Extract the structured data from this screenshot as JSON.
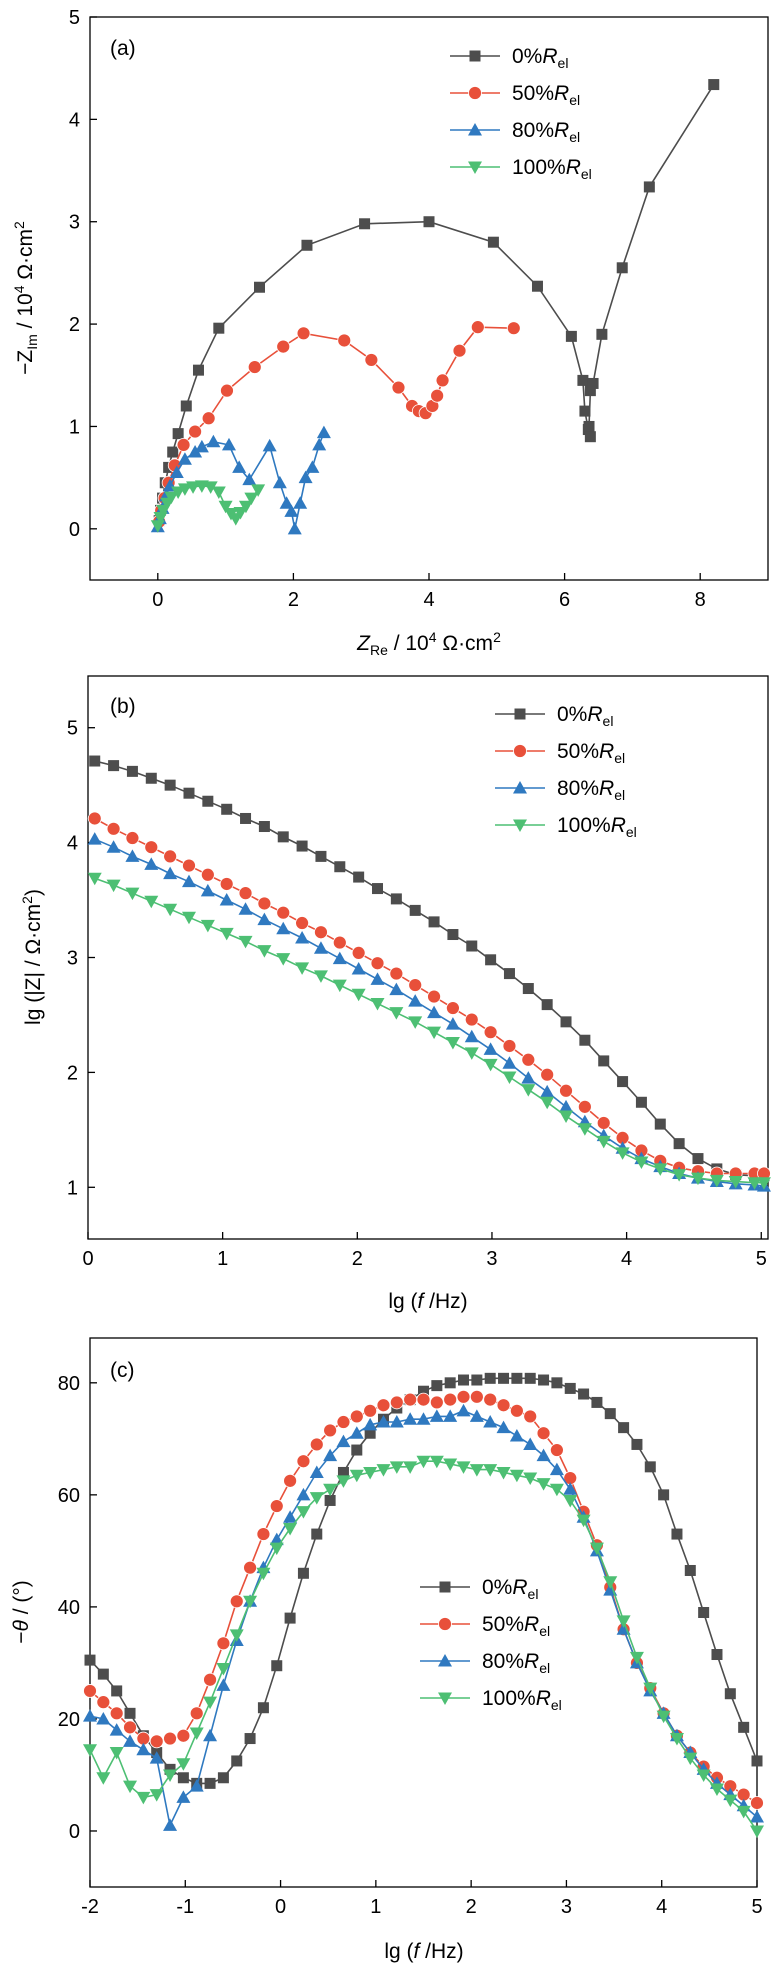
{
  "figure": {
    "legend_sub": "el",
    "legend_labels": [
      "0%R",
      "50%R",
      "80%R",
      "100%R"
    ],
    "colors": [
      "#4d4d4d",
      "#e8503a",
      "#2f79c0",
      "#4dbf73"
    ],
    "markers": [
      "square",
      "circle",
      "triangle-up",
      "triangle-down"
    ],
    "legend_placement": "top-right"
  },
  "chart_data": [
    {
      "type": "scatter",
      "panel_label": "(a)",
      "xlabel": "Z_Re / 10^4 Ω·cm^2",
      "ylabel": "−Z_Im / 10^4 Ω·cm^2",
      "xlim": [
        -1,
        9
      ],
      "ylim": [
        -0.5,
        5
      ],
      "xticks": [
        0,
        2,
        4,
        6,
        8
      ],
      "yticks": [
        0,
        1,
        2,
        3,
        4,
        5
      ],
      "grid": false,
      "series": [
        {
          "name": "0%Rel",
          "points": [
            [
              0.02,
              0.08
            ],
            [
              0.04,
              0.18
            ],
            [
              0.07,
              0.3
            ],
            [
              0.11,
              0.45
            ],
            [
              0.16,
              0.6
            ],
            [
              0.22,
              0.75
            ],
            [
              0.3,
              0.93
            ],
            [
              0.42,
              1.2
            ],
            [
              0.6,
              1.55
            ],
            [
              0.9,
              1.96
            ],
            [
              1.5,
              2.36
            ],
            [
              2.2,
              2.77
            ],
            [
              3.05,
              2.98
            ],
            [
              4.0,
              3.0
            ],
            [
              4.95,
              2.8
            ],
            [
              5.6,
              2.37
            ],
            [
              6.1,
              1.88
            ],
            [
              6.27,
              1.45
            ],
            [
              6.3,
              1.15
            ],
            [
              6.35,
              0.97
            ],
            [
              6.38,
              0.9
            ],
            [
              6.36,
              1.0
            ],
            [
              6.38,
              1.35
            ],
            [
              6.42,
              1.42
            ],
            [
              6.55,
              1.9
            ],
            [
              6.85,
              2.55
            ],
            [
              7.25,
              3.34
            ],
            [
              8.2,
              4.34
            ]
          ]
        },
        {
          "name": "50%Rel",
          "points": [
            [
              0.02,
              0.07
            ],
            [
              0.05,
              0.18
            ],
            [
              0.1,
              0.3
            ],
            [
              0.16,
              0.45
            ],
            [
              0.25,
              0.62
            ],
            [
              0.38,
              0.82
            ],
            [
              0.55,
              0.95
            ],
            [
              0.75,
              1.08
            ],
            [
              1.02,
              1.35
            ],
            [
              1.43,
              1.58
            ],
            [
              1.85,
              1.78
            ],
            [
              2.15,
              1.91
            ],
            [
              2.75,
              1.84
            ],
            [
              3.15,
              1.65
            ],
            [
              3.55,
              1.38
            ],
            [
              3.75,
              1.2
            ],
            [
              3.85,
              1.15
            ],
            [
              3.95,
              1.13
            ],
            [
              4.05,
              1.2
            ],
            [
              4.12,
              1.3
            ],
            [
              4.2,
              1.45
            ],
            [
              4.45,
              1.74
            ],
            [
              4.72,
              1.97
            ],
            [
              5.25,
              1.96
            ]
          ]
        },
        {
          "name": "80%Rel",
          "points": [
            [
              0.0,
              0.02
            ],
            [
              0.03,
              0.1
            ],
            [
              0.07,
              0.2
            ],
            [
              0.12,
              0.32
            ],
            [
              0.18,
              0.42
            ],
            [
              0.28,
              0.55
            ],
            [
              0.4,
              0.68
            ],
            [
              0.55,
              0.75
            ],
            [
              0.65,
              0.8
            ],
            [
              0.82,
              0.85
            ],
            [
              1.05,
              0.82
            ],
            [
              1.2,
              0.6
            ],
            [
              1.35,
              0.48
            ],
            [
              1.65,
              0.81
            ],
            [
              1.8,
              0.45
            ],
            [
              1.9,
              0.25
            ],
            [
              1.97,
              0.17
            ],
            [
              2.02,
              0.0
            ],
            [
              2.1,
              0.25
            ],
            [
              2.18,
              0.5
            ],
            [
              2.28,
              0.6
            ],
            [
              2.38,
              0.82
            ],
            [
              2.45,
              0.94
            ]
          ]
        },
        {
          "name": "100%Rel",
          "points": [
            [
              0.0,
              0.03
            ],
            [
              0.04,
              0.11
            ],
            [
              0.08,
              0.18
            ],
            [
              0.14,
              0.25
            ],
            [
              0.2,
              0.31
            ],
            [
              0.3,
              0.36
            ],
            [
              0.4,
              0.39
            ],
            [
              0.52,
              0.41
            ],
            [
              0.65,
              0.42
            ],
            [
              0.78,
              0.41
            ],
            [
              0.9,
              0.36
            ],
            [
              1.0,
              0.22
            ],
            [
              1.08,
              0.15
            ],
            [
              1.15,
              0.1
            ],
            [
              1.22,
              0.16
            ],
            [
              1.3,
              0.22
            ],
            [
              1.38,
              0.3
            ],
            [
              1.48,
              0.38
            ]
          ]
        }
      ]
    },
    {
      "type": "line",
      "panel_label": "(b)",
      "xlabel": "lg (f /Hz)",
      "ylabel": "lg (|Z| / Ω·cm^2)",
      "xlim": [
        0,
        5.05
      ],
      "ylim": [
        0.55,
        5.45
      ],
      "xticks": [
        0,
        1,
        2,
        3,
        4,
        5
      ],
      "yticks": [
        1,
        2,
        3,
        4,
        5
      ],
      "grid": false,
      "x": [
        0.05,
        0.19,
        0.33,
        0.47,
        0.61,
        0.75,
        0.89,
        1.03,
        1.17,
        1.31,
        1.45,
        1.59,
        1.73,
        1.87,
        2.01,
        2.15,
        2.29,
        2.43,
        2.57,
        2.71,
        2.85,
        2.99,
        3.13,
        3.27,
        3.41,
        3.55,
        3.69,
        3.83,
        3.97,
        4.11,
        4.25,
        4.39,
        4.53,
        4.67,
        4.81,
        4.95,
        5.02
      ],
      "series": [
        {
          "name": "0%Rel",
          "values": [
            4.71,
            4.67,
            4.62,
            4.56,
            4.5,
            4.43,
            4.36,
            4.29,
            4.21,
            4.14,
            4.05,
            3.97,
            3.88,
            3.79,
            3.7,
            3.6,
            3.51,
            3.41,
            3.31,
            3.2,
            3.1,
            2.98,
            2.86,
            2.73,
            2.59,
            2.44,
            2.28,
            2.1,
            1.92,
            1.74,
            1.55,
            1.38,
            1.25,
            1.16,
            1.11,
            1.1,
            1.1
          ]
        },
        {
          "name": "50%Rel",
          "values": [
            4.21,
            4.12,
            4.04,
            3.96,
            3.88,
            3.8,
            3.72,
            3.64,
            3.56,
            3.47,
            3.39,
            3.3,
            3.22,
            3.13,
            3.04,
            2.95,
            2.86,
            2.76,
            2.66,
            2.56,
            2.46,
            2.35,
            2.23,
            2.11,
            1.98,
            1.84,
            1.7,
            1.56,
            1.43,
            1.32,
            1.23,
            1.17,
            1.14,
            1.12,
            1.12,
            1.12,
            1.12
          ]
        },
        {
          "name": "80%Rel",
          "values": [
            4.03,
            3.96,
            3.88,
            3.81,
            3.73,
            3.66,
            3.58,
            3.5,
            3.42,
            3.33,
            3.25,
            3.17,
            3.08,
            2.99,
            2.9,
            2.81,
            2.72,
            2.62,
            2.52,
            2.42,
            2.31,
            2.2,
            2.08,
            1.95,
            1.83,
            1.7,
            1.57,
            1.45,
            1.34,
            1.25,
            1.18,
            1.12,
            1.08,
            1.05,
            1.03,
            1.02,
            1.01
          ]
        },
        {
          "name": "100%Rel",
          "values": [
            3.69,
            3.63,
            3.56,
            3.49,
            3.42,
            3.35,
            3.28,
            3.21,
            3.14,
            3.06,
            2.99,
            2.91,
            2.84,
            2.76,
            2.68,
            2.6,
            2.52,
            2.44,
            2.35,
            2.26,
            2.17,
            2.07,
            1.96,
            1.85,
            1.74,
            1.62,
            1.51,
            1.4,
            1.3,
            1.22,
            1.16,
            1.11,
            1.08,
            1.06,
            1.05,
            1.04,
            1.04
          ]
        }
      ]
    },
    {
      "type": "line",
      "panel_label": "(c)",
      "xlabel": "lg (f /Hz)",
      "ylabel": "−θ / (°)",
      "xlim": [
        -2,
        5
      ],
      "ylim": [
        -10,
        88
      ],
      "xticks": [
        -2,
        -1,
        0,
        1,
        2,
        3,
        4,
        5
      ],
      "yticks": [
        0,
        20,
        40,
        60,
        80
      ],
      "grid": false,
      "series": [
        {
          "name": "0%Rel",
          "x": [
            -2.0,
            -1.86,
            -1.72,
            -1.58,
            -1.44,
            -1.3,
            -1.16,
            -1.02,
            -0.88,
            -0.74,
            -0.6,
            -0.46,
            -0.32,
            -0.18,
            -0.04,
            0.1,
            0.24,
            0.38,
            0.52,
            0.66,
            0.8,
            0.94,
            1.08,
            1.22,
            1.36,
            1.5,
            1.64,
            1.78,
            1.92,
            2.06,
            2.2,
            2.34,
            2.48,
            2.62,
            2.76,
            2.9,
            3.04,
            3.18,
            3.32,
            3.46,
            3.6,
            3.74,
            3.88,
            4.02,
            4.16,
            4.3,
            4.44,
            4.58,
            4.72,
            4.86,
            5.0
          ],
          "values": [
            30.5,
            28.0,
            25.0,
            21.0,
            17.0,
            14.0,
            11.0,
            9.5,
            8.5,
            8.5,
            9.5,
            12.5,
            16.5,
            22.0,
            29.5,
            38.0,
            46.0,
            53.0,
            59.0,
            64.0,
            68.0,
            71.0,
            73.5,
            75.5,
            77.0,
            78.5,
            79.5,
            80.0,
            80.5,
            80.5,
            80.8,
            80.8,
            80.8,
            80.8,
            80.5,
            80.0,
            79.0,
            78.0,
            76.5,
            74.5,
            72.0,
            69.0,
            65.0,
            60.0,
            53.0,
            46.5,
            39.0,
            31.5,
            24.5,
            18.5,
            12.5
          ]
        },
        {
          "name": "50%Rel",
          "x": [
            -2.0,
            -1.86,
            -1.72,
            -1.58,
            -1.44,
            -1.3,
            -1.16,
            -1.02,
            -0.88,
            -0.74,
            -0.6,
            -0.46,
            -0.32,
            -0.18,
            -0.04,
            0.1,
            0.24,
            0.38,
            0.52,
            0.66,
            0.8,
            0.94,
            1.08,
            1.22,
            1.36,
            1.5,
            1.64,
            1.78,
            1.92,
            2.06,
            2.2,
            2.34,
            2.48,
            2.62,
            2.76,
            2.9,
            3.04,
            3.18,
            3.32,
            3.46,
            3.6,
            3.74,
            3.88,
            4.02,
            4.16,
            4.3,
            4.44,
            4.58,
            4.72,
            4.86,
            5.0
          ],
          "values": [
            25.0,
            23.0,
            21.0,
            18.5,
            16.5,
            16.0,
            16.5,
            17.0,
            21.0,
            27.0,
            33.5,
            41.0,
            47.0,
            53.0,
            58.0,
            62.5,
            66.0,
            69.0,
            71.5,
            73.0,
            74.0,
            75.0,
            76.0,
            76.5,
            77.0,
            77.0,
            76.5,
            77.0,
            77.5,
            77.5,
            77.0,
            76.0,
            75.0,
            74.0,
            71.0,
            68.0,
            63.0,
            57.0,
            51.0,
            43.5,
            36.0,
            30.0,
            25.5,
            21.0,
            17.0,
            14.0,
            11.5,
            9.5,
            8.0,
            6.5,
            5.0
          ]
        },
        {
          "name": "80%Rel",
          "x": [
            -2.0,
            -1.86,
            -1.72,
            -1.58,
            -1.44,
            -1.3,
            -1.16,
            -1.02,
            -0.88,
            -0.74,
            -0.6,
            -0.46,
            -0.32,
            -0.18,
            -0.04,
            0.1,
            0.24,
            0.38,
            0.52,
            0.66,
            0.8,
            0.94,
            1.08,
            1.22,
            1.36,
            1.5,
            1.64,
            1.78,
            1.92,
            2.06,
            2.2,
            2.34,
            2.48,
            2.62,
            2.76,
            2.9,
            3.04,
            3.18,
            3.32,
            3.46,
            3.6,
            3.74,
            3.88,
            4.02,
            4.16,
            4.3,
            4.44,
            4.58,
            4.72,
            4.86,
            5.0
          ],
          "values": [
            20.5,
            20.0,
            18.0,
            16.0,
            14.5,
            13.0,
            1.0,
            6.0,
            8.0,
            17.0,
            26.0,
            34.0,
            41.0,
            47.0,
            52.0,
            56.0,
            60.0,
            64.0,
            67.0,
            69.5,
            71.0,
            72.5,
            73.0,
            73.0,
            73.5,
            73.5,
            74.0,
            74.0,
            75.0,
            74.0,
            73.0,
            72.0,
            70.5,
            69.0,
            67.0,
            64.5,
            61.0,
            56.0,
            50.0,
            43.0,
            36.0,
            30.0,
            25.0,
            21.0,
            17.0,
            14.0,
            11.0,
            8.5,
            6.5,
            4.5,
            2.5
          ]
        },
        {
          "name": "100%Rel",
          "x": [
            -2.0,
            -1.86,
            -1.72,
            -1.58,
            -1.44,
            -1.3,
            -1.16,
            -1.02,
            -0.88,
            -0.74,
            -0.6,
            -0.46,
            -0.32,
            -0.18,
            -0.04,
            0.1,
            0.24,
            0.38,
            0.52,
            0.66,
            0.8,
            0.94,
            1.08,
            1.22,
            1.36,
            1.5,
            1.64,
            1.78,
            1.92,
            2.06,
            2.2,
            2.34,
            2.48,
            2.62,
            2.76,
            2.9,
            3.04,
            3.18,
            3.32,
            3.46,
            3.6,
            3.74,
            3.88,
            4.02,
            4.16,
            4.3,
            4.44,
            4.58,
            4.72,
            4.86,
            5.0
          ],
          "values": [
            14.5,
            9.5,
            14.0,
            8.0,
            6.0,
            6.5,
            10.0,
            12.0,
            17.5,
            23.0,
            29.0,
            35.0,
            41.0,
            46.0,
            50.5,
            54.0,
            57.0,
            59.5,
            61.0,
            62.5,
            63.5,
            64.0,
            64.5,
            65.0,
            65.0,
            66.0,
            66.0,
            65.5,
            65.0,
            64.5,
            64.5,
            64.0,
            63.5,
            63.0,
            62.0,
            61.0,
            59.0,
            55.5,
            50.5,
            44.5,
            37.5,
            31.0,
            25.5,
            20.5,
            16.5,
            13.0,
            10.0,
            7.5,
            5.5,
            3.5,
            0.0
          ]
        }
      ]
    }
  ]
}
